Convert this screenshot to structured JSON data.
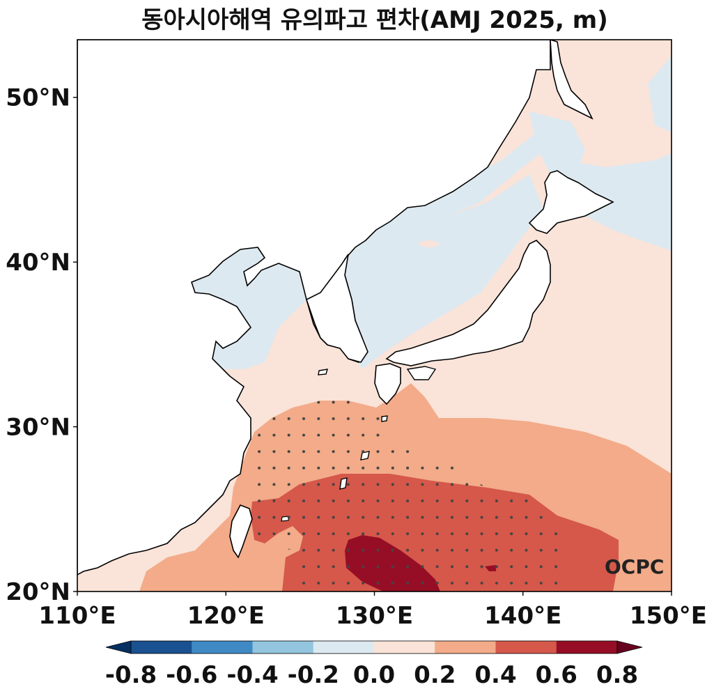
{
  "title": "동아시아해역 유의파고 편차(AMJ 2025, m)",
  "watermark": "OCPC",
  "map": {
    "lon_range": [
      110,
      150
    ],
    "lat_range": [
      20,
      53.5
    ],
    "lon_ticks": [
      {
        "value": 110,
        "label": "110°E"
      },
      {
        "value": 120,
        "label": "120°E"
      },
      {
        "value": 130,
        "label": "130°E"
      },
      {
        "value": 140,
        "label": "140°E"
      },
      {
        "value": 150,
        "label": "150°E"
      }
    ],
    "lat_ticks": [
      {
        "value": 20,
        "label": "20°N"
      },
      {
        "value": 30,
        "label": "30°N"
      },
      {
        "value": 40,
        "label": "40°N"
      },
      {
        "value": 50,
        "label": "50°N"
      }
    ],
    "land_color": "#ffffff",
    "coastline_color": "#000000",
    "stipple_meaning": "significant anomaly"
  },
  "colorbar": {
    "ticks": [
      "-0.8",
      "-0.6",
      "-0.4",
      "-0.2",
      "0.0",
      "0.2",
      "0.4",
      "0.6",
      "0.8"
    ],
    "colors": [
      "#053061",
      "#1a5190",
      "#3f8ac4",
      "#93c5df",
      "#dde9f1",
      "#fae3d8",
      "#f3ab89",
      "#d5584a",
      "#960e26",
      "#67001f"
    ],
    "extend": "both"
  },
  "colors": {
    "neg_01": "#dde9f1",
    "pos_01": "#fae3d8",
    "pos_03": "#f3ab89",
    "pos_05": "#d5584a",
    "pos_07": "#960e26"
  }
}
